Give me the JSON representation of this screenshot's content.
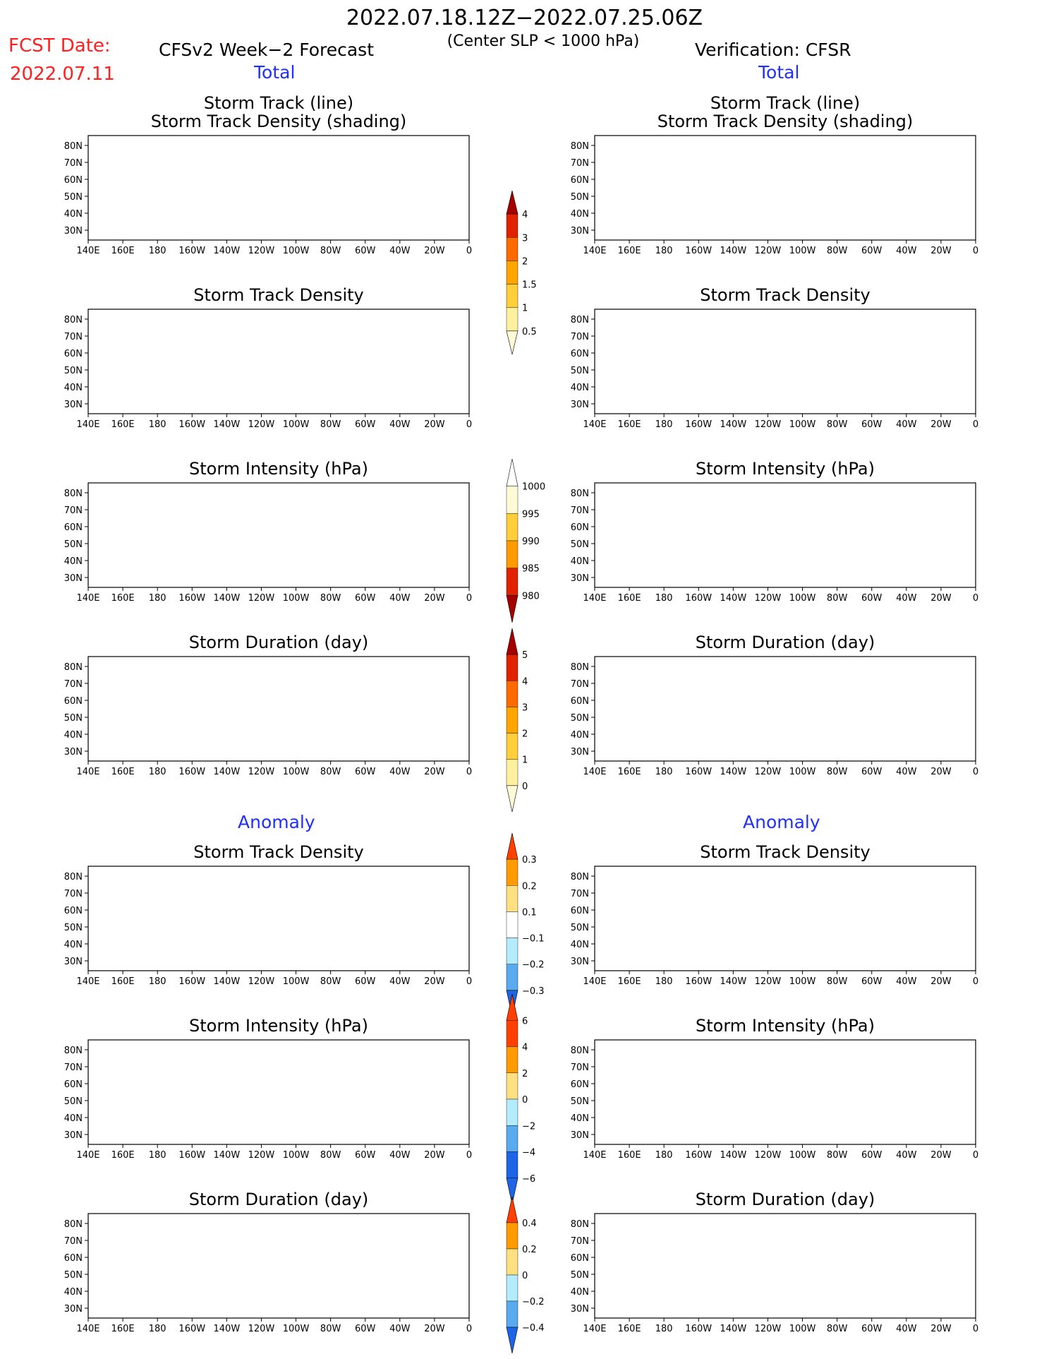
{
  "header": {
    "date_range": "2022.07.18.12Z−2022.07.25.06Z",
    "criterion": "(Center SLP < 1000 hPa)",
    "fcst_label": "FCST Date:",
    "fcst_date": "2022.07.11",
    "left_product": "CFSv2 Week−2 Forecast",
    "right_product": "Verification: CFSR",
    "total_label": "Total",
    "anomaly_label": "Anomaly"
  },
  "panel_titles": {
    "storm_track_line": "Storm Track (line)",
    "storm_track_density_shading": "Storm Track Density (shading)",
    "storm_track_density": "Storm Track Density",
    "storm_intensity": "Storm Intensity (hPa)",
    "storm_duration": "Storm Duration (day)"
  },
  "axes": {
    "lat_labels": [
      "80N",
      "70N",
      "60N",
      "50N",
      "40N",
      "30N"
    ],
    "lon_labels": [
      "140E",
      "160E",
      "180",
      "160W",
      "140W",
      "120W",
      "100W",
      "80W",
      "60W",
      "40W",
      "20W",
      "0"
    ]
  },
  "colorbars": {
    "density_total": {
      "labels": [
        "4",
        "3",
        "2",
        "1.5",
        "1",
        "0.5"
      ],
      "colors": [
        "#a50000",
        "#e02200",
        "#ff6a00",
        "#ffa500",
        "#ffce3a",
        "#fff0a0",
        "#fffad6"
      ]
    },
    "intensity_total": {
      "labels": [
        "1000",
        "995",
        "990",
        "985",
        "980"
      ],
      "colors": [
        "#fffad6",
        "#ffce3a",
        "#ff9a00",
        "#e02200",
        "#a50000"
      ]
    },
    "duration_total": {
      "labels": [
        "5",
        "4",
        "3",
        "2",
        "1",
        "0"
      ],
      "colors": [
        "#a50000",
        "#e02200",
        "#ff6a00",
        "#ffa500",
        "#ffce3a",
        "#fff0a0",
        "#fffad6"
      ]
    },
    "density_anom": {
      "labels": [
        "0.3",
        "0.2",
        "0.1",
        "−0.1",
        "−0.2",
        "−0.3"
      ],
      "colors": [
        "#ff4000",
        "#ff9a00",
        "#ffe080",
        "#ffffff",
        "#b4ecff",
        "#5aaaf0",
        "#1e64e6"
      ]
    },
    "intensity_anom": {
      "labels": [
        "6",
        "4",
        "2",
        "0",
        "−2",
        "−4",
        "−6"
      ],
      "colors": [
        "#ff4000",
        "#ff9a00",
        "#ffe080",
        "#ffffff",
        "#b4ecff",
        "#5aaaf0",
        "#1e64e6"
      ]
    },
    "duration_anom": {
      "labels": [
        "0.4",
        "0.2",
        "0",
        "−0.2",
        "−0.4"
      ],
      "colors": [
        "#ff4000",
        "#ff9a00",
        "#ffe080",
        "#b4ecff",
        "#5aaaf0",
        "#1e64e6"
      ]
    }
  }
}
